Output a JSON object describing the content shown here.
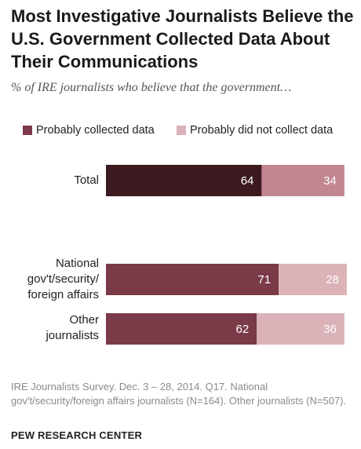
{
  "chart_data": {
    "type": "bar",
    "orientation": "horizontal",
    "stacked": true,
    "title": "Most Investigative Journalists Believe the U.S. Government Collected Data About Their Communications",
    "subtitle": "% of IRE journalists who believe that the government…",
    "legend_position": "top-left",
    "categories": [
      "Total",
      "National\ngov't/security/\nforeign affairs",
      "Other\njournalists"
    ],
    "series": [
      {
        "name": "Probably collected data",
        "values": [
          64,
          71,
          62
        ],
        "colors": [
          "#3d1a20",
          "#7b3a48",
          "#7b3a48"
        ]
      },
      {
        "name": "Probably did not collect data",
        "values": [
          34,
          28,
          36
        ],
        "colors": [
          "#c28690",
          "#dab2b8",
          "#dab2b8"
        ]
      }
    ],
    "xlim": [
      0,
      100
    ],
    "grid": false
  },
  "legend_colors": [
    "#7b3a48",
    "#dab2b8"
  ],
  "footnote": "IRE Journalists Survey. Dec. 3 – 28, 2014. Q17. National gov't/security/foreign affairs journalists (N=164). Other journalists (N=507).",
  "source": "PEW RESEARCH CENTER"
}
